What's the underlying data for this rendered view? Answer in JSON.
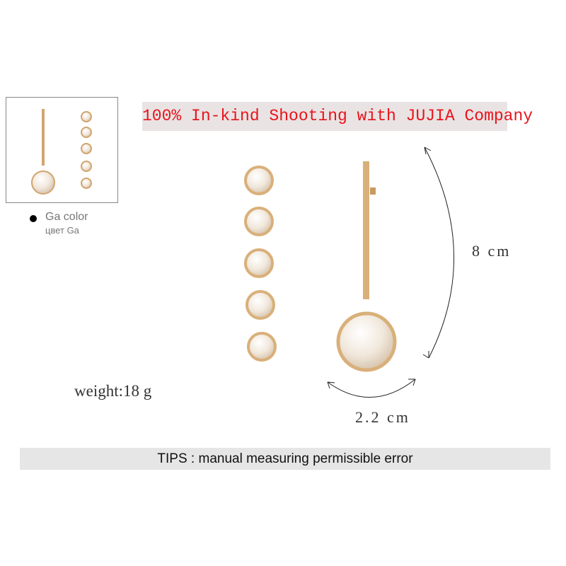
{
  "banner": "100% In-kind Shooting with JUJIA Company",
  "swatch": {
    "label_en": "Ga color",
    "label_ru": "цвет Ga"
  },
  "weight": "weight:18 g",
  "height_measure": "8 cm",
  "width_measure": "2.2 cm",
  "tips": "TIPS : manual measuring permissible error",
  "colors": {
    "banner_text": "#e8141c",
    "banner_bg": "#e9e3e3",
    "gold": "#d9b07a",
    "pearl": "#f4ece2"
  }
}
